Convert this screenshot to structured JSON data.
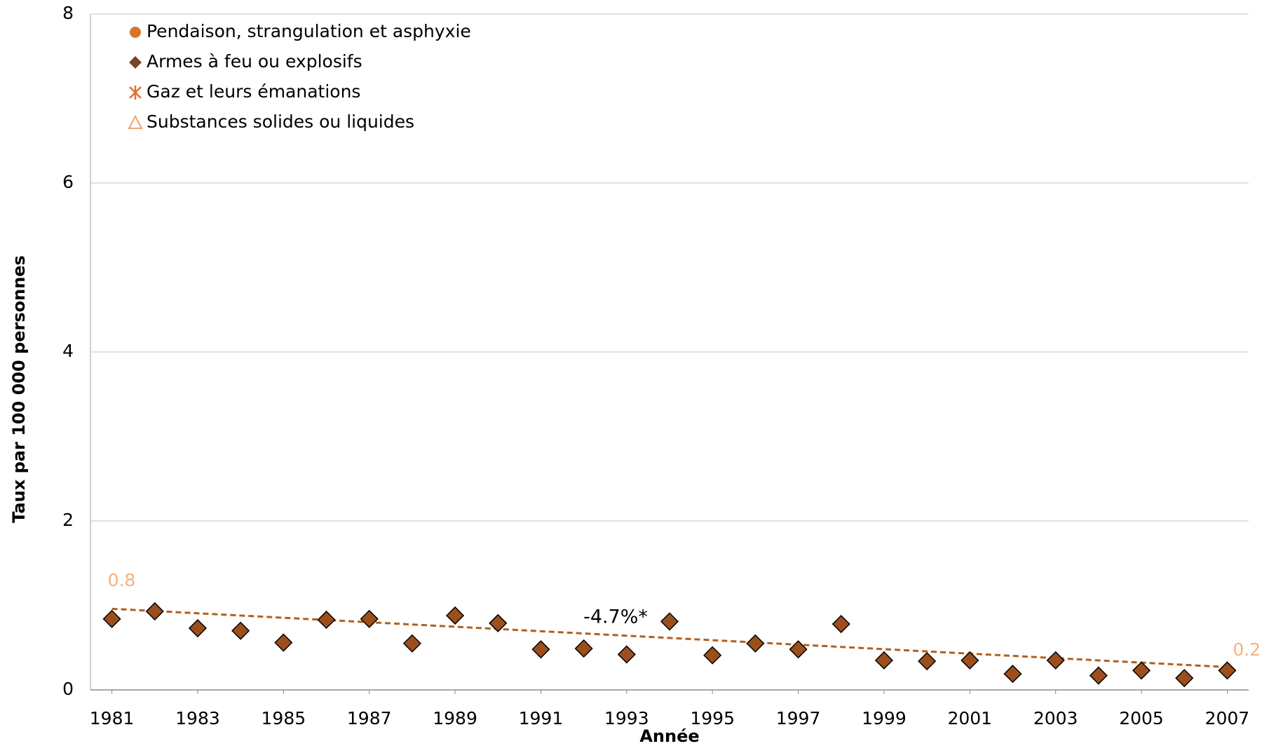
{
  "chart_data": {
    "type": "scatter",
    "y_label": "Taux par 100 000 personnes",
    "x_label": "Année",
    "x": [
      1981,
      1982,
      1983,
      1984,
      1985,
      1986,
      1987,
      1988,
      1989,
      1990,
      1991,
      1992,
      1993,
      1994,
      1995,
      1996,
      1997,
      1998,
      1999,
      2000,
      2001,
      2002,
      2003,
      2004,
      2005,
      2006,
      2007
    ],
    "series": [
      {
        "name": "Armes à feu ou explosifs",
        "color": "#9c4f1c",
        "values": [
          0.84,
          0.93,
          0.73,
          0.7,
          0.56,
          0.83,
          0.84,
          0.55,
          0.88,
          0.79,
          0.48,
          0.49,
          0.42,
          0.81,
          0.41,
          0.55,
          0.48,
          0.78,
          0.35,
          0.34,
          0.35,
          0.19,
          0.35,
          0.17,
          0.23,
          0.14,
          0.23
        ]
      }
    ],
    "trend": {
      "x": [
        1981,
        2007
      ],
      "values": [
        0.96,
        0.27
      ],
      "color": "#b0601f",
      "label": "-4.7%*",
      "end_labels": [
        "0.8",
        "0.2"
      ],
      "end_label_color": "#f4b183"
    },
    "legend": [
      {
        "name": "Pendaison, strangulation et asphyxie",
        "color": "#d9752b",
        "marker": "circle"
      },
      {
        "name": "Armes à feu ou explosifs",
        "color": "#7a4426",
        "marker": "diamond"
      },
      {
        "name": "Gaz et leurs émanations",
        "color": "#e07030",
        "marker": "asterisk"
      },
      {
        "name": "Substances solides ou liquides",
        "color": "#f2a36b",
        "marker": "triangle"
      }
    ],
    "xlim": [
      1980.5,
      2007.5
    ],
    "xticks": [
      1981,
      1983,
      1985,
      1987,
      1989,
      1991,
      1993,
      1995,
      1997,
      1999,
      2001,
      2003,
      2005,
      2007
    ],
    "ylim": [
      0,
      8
    ],
    "yticks": [
      0,
      2,
      4,
      6,
      8
    ],
    "grid": true
  }
}
